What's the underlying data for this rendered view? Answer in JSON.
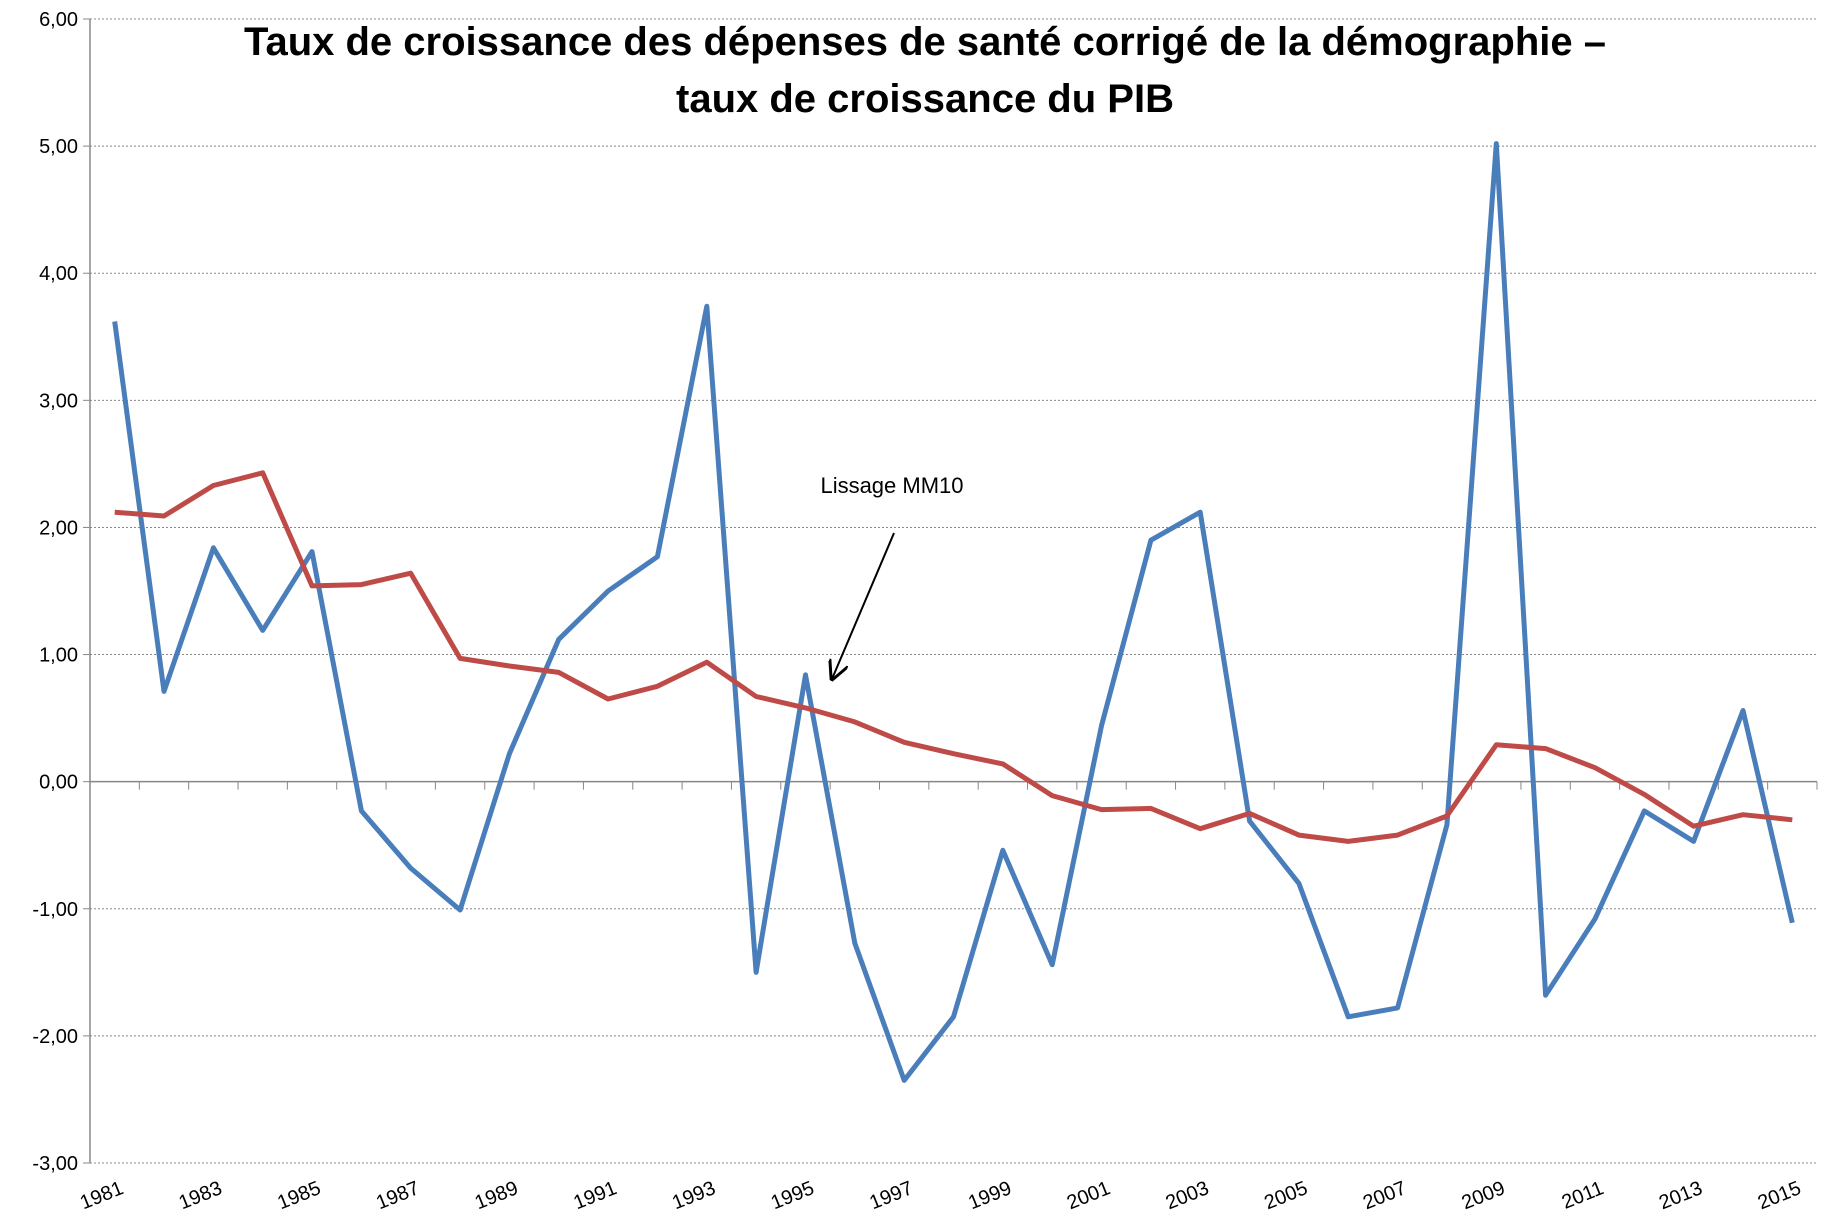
{
  "chart_data": {
    "type": "line",
    "title": [
      "Taux de croissance des dépenses de santé corrigé de la démographie –",
      "taux de croissance du PIB"
    ],
    "annotation": "Lissage MM10",
    "categories": [
      "1981",
      null,
      "1983",
      null,
      "1985",
      null,
      "1987",
      null,
      "1989",
      null,
      "1991",
      null,
      "1993",
      null,
      "1995",
      null,
      "1997",
      null,
      "1999",
      null,
      "2001",
      null,
      "2003",
      null,
      "2005",
      null,
      "2007",
      null,
      "2009",
      null,
      "2011",
      null,
      "2013",
      null,
      "2015"
    ],
    "series": [
      {
        "color": "#4a7ebb",
        "values": [
          3.62,
          0.71,
          1.84,
          1.19,
          1.81,
          -0.23,
          -0.68,
          -1.01,
          0.22,
          1.12,
          1.5,
          1.77,
          3.74,
          -1.5,
          0.84,
          -1.27,
          -2.35,
          -1.85,
          -0.54,
          -1.44,
          0.44,
          1.9,
          2.12,
          -0.31,
          -0.8,
          -1.85,
          -1.78,
          -0.34,
          5.02,
          -1.68,
          -1.08,
          -0.23,
          -0.47,
          0.56,
          -1.11
        ]
      },
      {
        "color": "#be4b48",
        "values": [
          2.12,
          2.09,
          2.33,
          2.43,
          1.54,
          1.55,
          1.64,
          0.97,
          0.91,
          0.86,
          0.65,
          0.75,
          0.94,
          0.67,
          0.58,
          0.47,
          0.31,
          0.22,
          0.14,
          -0.11,
          -0.22,
          -0.21,
          -0.37,
          -0.25,
          -0.42,
          -0.47,
          -0.42,
          -0.27,
          0.29,
          0.26,
          0.11,
          -0.1,
          -0.35,
          -0.26,
          -0.3
        ]
      }
    ],
    "ylim": [
      -3,
      6
    ],
    "yticks": [
      {
        "value": -3,
        "label": "-3,00"
      },
      {
        "value": -2,
        "label": "-2,00"
      },
      {
        "value": -1,
        "label": "-1,00"
      },
      {
        "value": 0,
        "label": "0,00"
      },
      {
        "value": 1,
        "label": "1,00"
      },
      {
        "value": 2,
        "label": "2,00"
      },
      {
        "value": 3,
        "label": "3,00"
      },
      {
        "value": 4,
        "label": "4,00"
      },
      {
        "value": 5,
        "label": "5,00"
      },
      {
        "value": 6,
        "label": "6,00"
      }
    ],
    "grid": true
  }
}
